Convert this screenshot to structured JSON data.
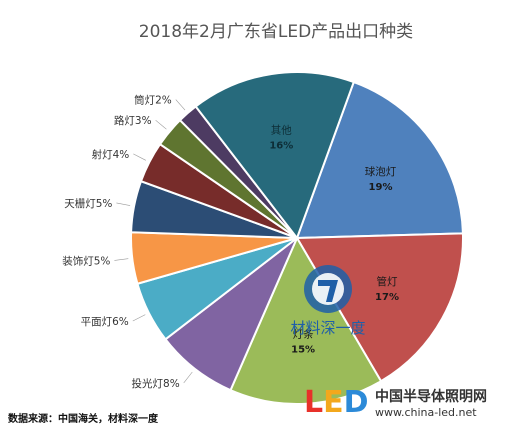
{
  "chart_data": {
    "type": "pie",
    "title": "2018年2月广东省LED产品出口种类",
    "slices": [
      {
        "name": "球泡灯",
        "value": 19,
        "label": "19%",
        "color": "#4f81bd",
        "placement": "inside"
      },
      {
        "name": "管灯",
        "value": 17,
        "label": "17%",
        "color": "#c0504d",
        "placement": "inside"
      },
      {
        "name": "灯条",
        "value": 15,
        "label": "15%",
        "color": "#9bbb59",
        "placement": "inside"
      },
      {
        "name": "投光灯",
        "value": 8,
        "label": "8%",
        "color": "#8064a2",
        "placement": "outside"
      },
      {
        "name": "平面灯",
        "value": 6,
        "label": "6%",
        "color": "#4bacc6",
        "placement": "outside"
      },
      {
        "name": "装饰灯",
        "value": 5,
        "label": "5%",
        "color": "#f79646",
        "placement": "outside"
      },
      {
        "name": "天栅灯",
        "value": 5,
        "label": "5%",
        "color": "#2c4d75",
        "placement": "outside"
      },
      {
        "name": "射灯",
        "value": 4,
        "label": "4%",
        "color": "#772c2a",
        "placement": "outside"
      },
      {
        "name": "路灯",
        "value": 3,
        "label": "3%",
        "color": "#5f7530",
        "placement": "outside"
      },
      {
        "name": "筒灯",
        "value": 2,
        "label": "2%",
        "color": "#4d3b62",
        "placement": "outside"
      },
      {
        "name": "其他",
        "value": 16,
        "label": "16%",
        "color": "#276a7c",
        "placement": "inside"
      }
    ]
  },
  "watermark_text": "材料深一度",
  "source_text": "数据来源：中国海关，材料深一度",
  "logo": {
    "brand": "LED",
    "cn_name": "中国半导体照明网",
    "url": "www.china-led.net",
    "colors": {
      "L": "#e8312a",
      "E": "#f3a81c",
      "D": "#2c8ad8"
    }
  }
}
